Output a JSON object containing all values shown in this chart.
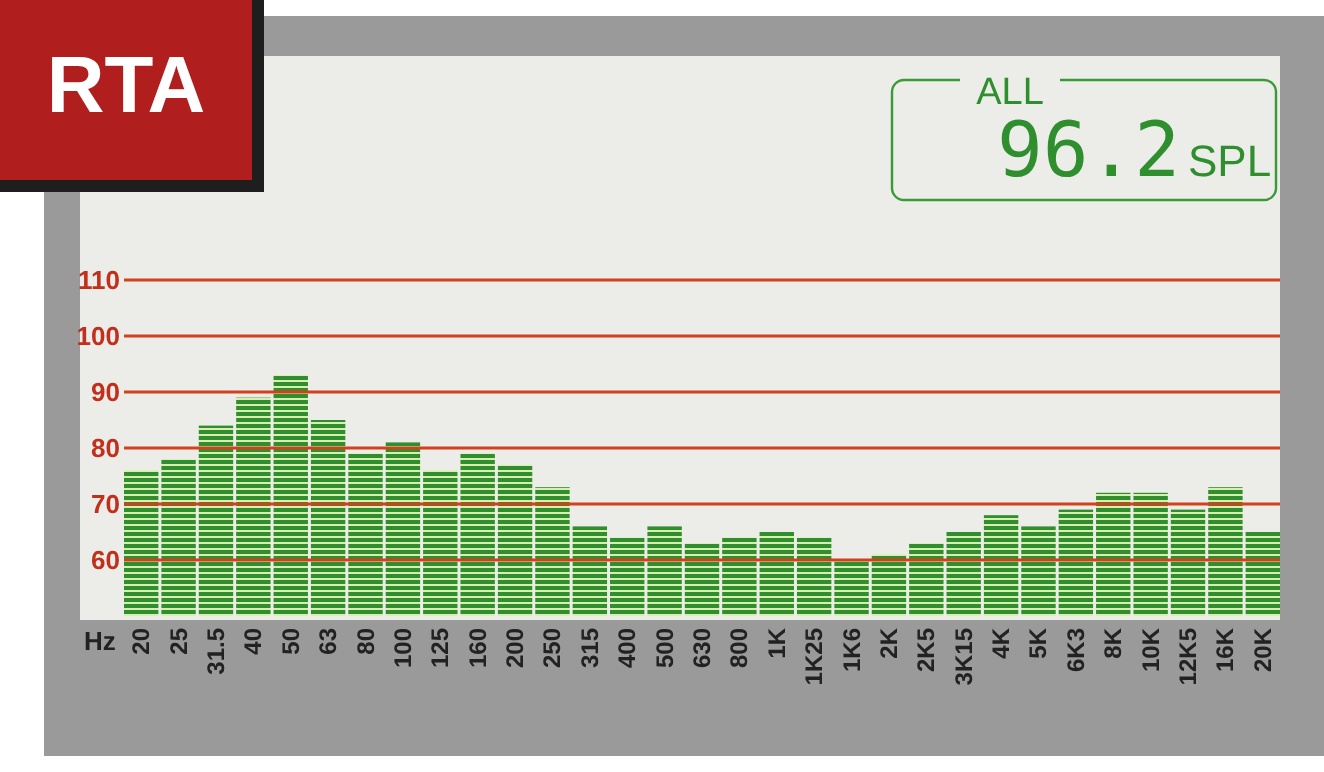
{
  "chart_data": {
    "type": "bar",
    "title": "RTA",
    "xlabel": "Hz",
    "annotations": [
      "ALL",
      "96.2",
      "SPL"
    ],
    "categories": [
      "20",
      "25",
      "31.5",
      "40",
      "50",
      "63",
      "80",
      "100",
      "125",
      "160",
      "200",
      "250",
      "315",
      "400",
      "500",
      "630",
      "800",
      "1K",
      "1K25",
      "1K6",
      "2K",
      "2K5",
      "3K15",
      "4K",
      "5K",
      "6K3",
      "8K",
      "10K",
      "12K5",
      "16K",
      "20K"
    ],
    "values": [
      76,
      78,
      84,
      89,
      93,
      85,
      79,
      81,
      76,
      79,
      77,
      73,
      66,
      64,
      66,
      63,
      64,
      65,
      64,
      60,
      61,
      63,
      65,
      68,
      66,
      69,
      72,
      72,
      69,
      73,
      65
    ],
    "color": "#2f8f2f",
    "ylim": [
      50,
      110
    ],
    "yticks": [
      60,
      70,
      80,
      90,
      100,
      110
    ],
    "grid": "y"
  }
}
